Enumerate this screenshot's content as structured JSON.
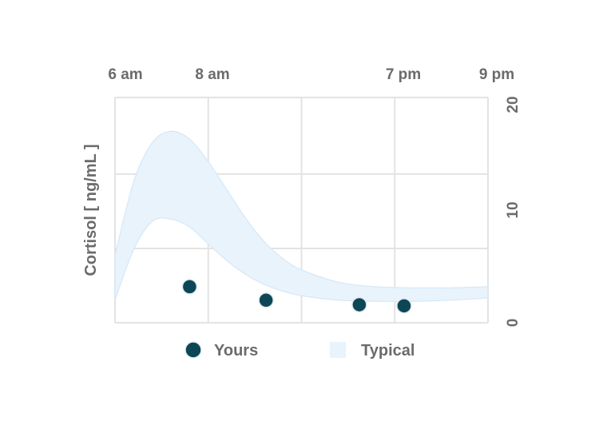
{
  "chart_data": {
    "type": "scatter",
    "title": "",
    "xlabel": "",
    "ylabel": "Cortisol [ ng/mL ]",
    "x_ticks": [
      "6 am",
      "8 am",
      "7 pm",
      "9 pm"
    ],
    "y_ticks": [
      "0",
      "10",
      "20"
    ],
    "ylim": [
      0,
      20
    ],
    "grid": true,
    "legend": [
      "Yours",
      "Typical"
    ],
    "legend_position": "bottom",
    "series": [
      {
        "name": "Yours",
        "color": "#0d4657",
        "points": [
          {
            "x": 0.2,
            "y": 3.2
          },
          {
            "x": 0.405,
            "y": 2.0
          },
          {
            "x": 0.655,
            "y": 1.6
          },
          {
            "x": 0.775,
            "y": 1.5
          }
        ]
      },
      {
        "name": "Typical",
        "type": "band",
        "color": "#e8f3fc",
        "x": [
          0,
          0.05,
          0.1,
          0.15,
          0.2,
          0.25,
          0.3,
          0.35,
          0.4,
          0.45,
          0.5,
          0.6,
          0.7,
          0.8,
          0.9,
          1.0
        ],
        "upper": [
          6,
          12.5,
          16,
          17,
          16.3,
          14.3,
          11.8,
          9.3,
          7.2,
          5.7,
          4.7,
          3.6,
          3.2,
          3.1,
          3.1,
          3.2
        ],
        "lower": [
          2,
          6.5,
          9,
          9.2,
          8.5,
          7.0,
          5.5,
          4.3,
          3.4,
          2.8,
          2.4,
          2.0,
          1.9,
          1.9,
          2.0,
          2.2
        ]
      }
    ]
  }
}
